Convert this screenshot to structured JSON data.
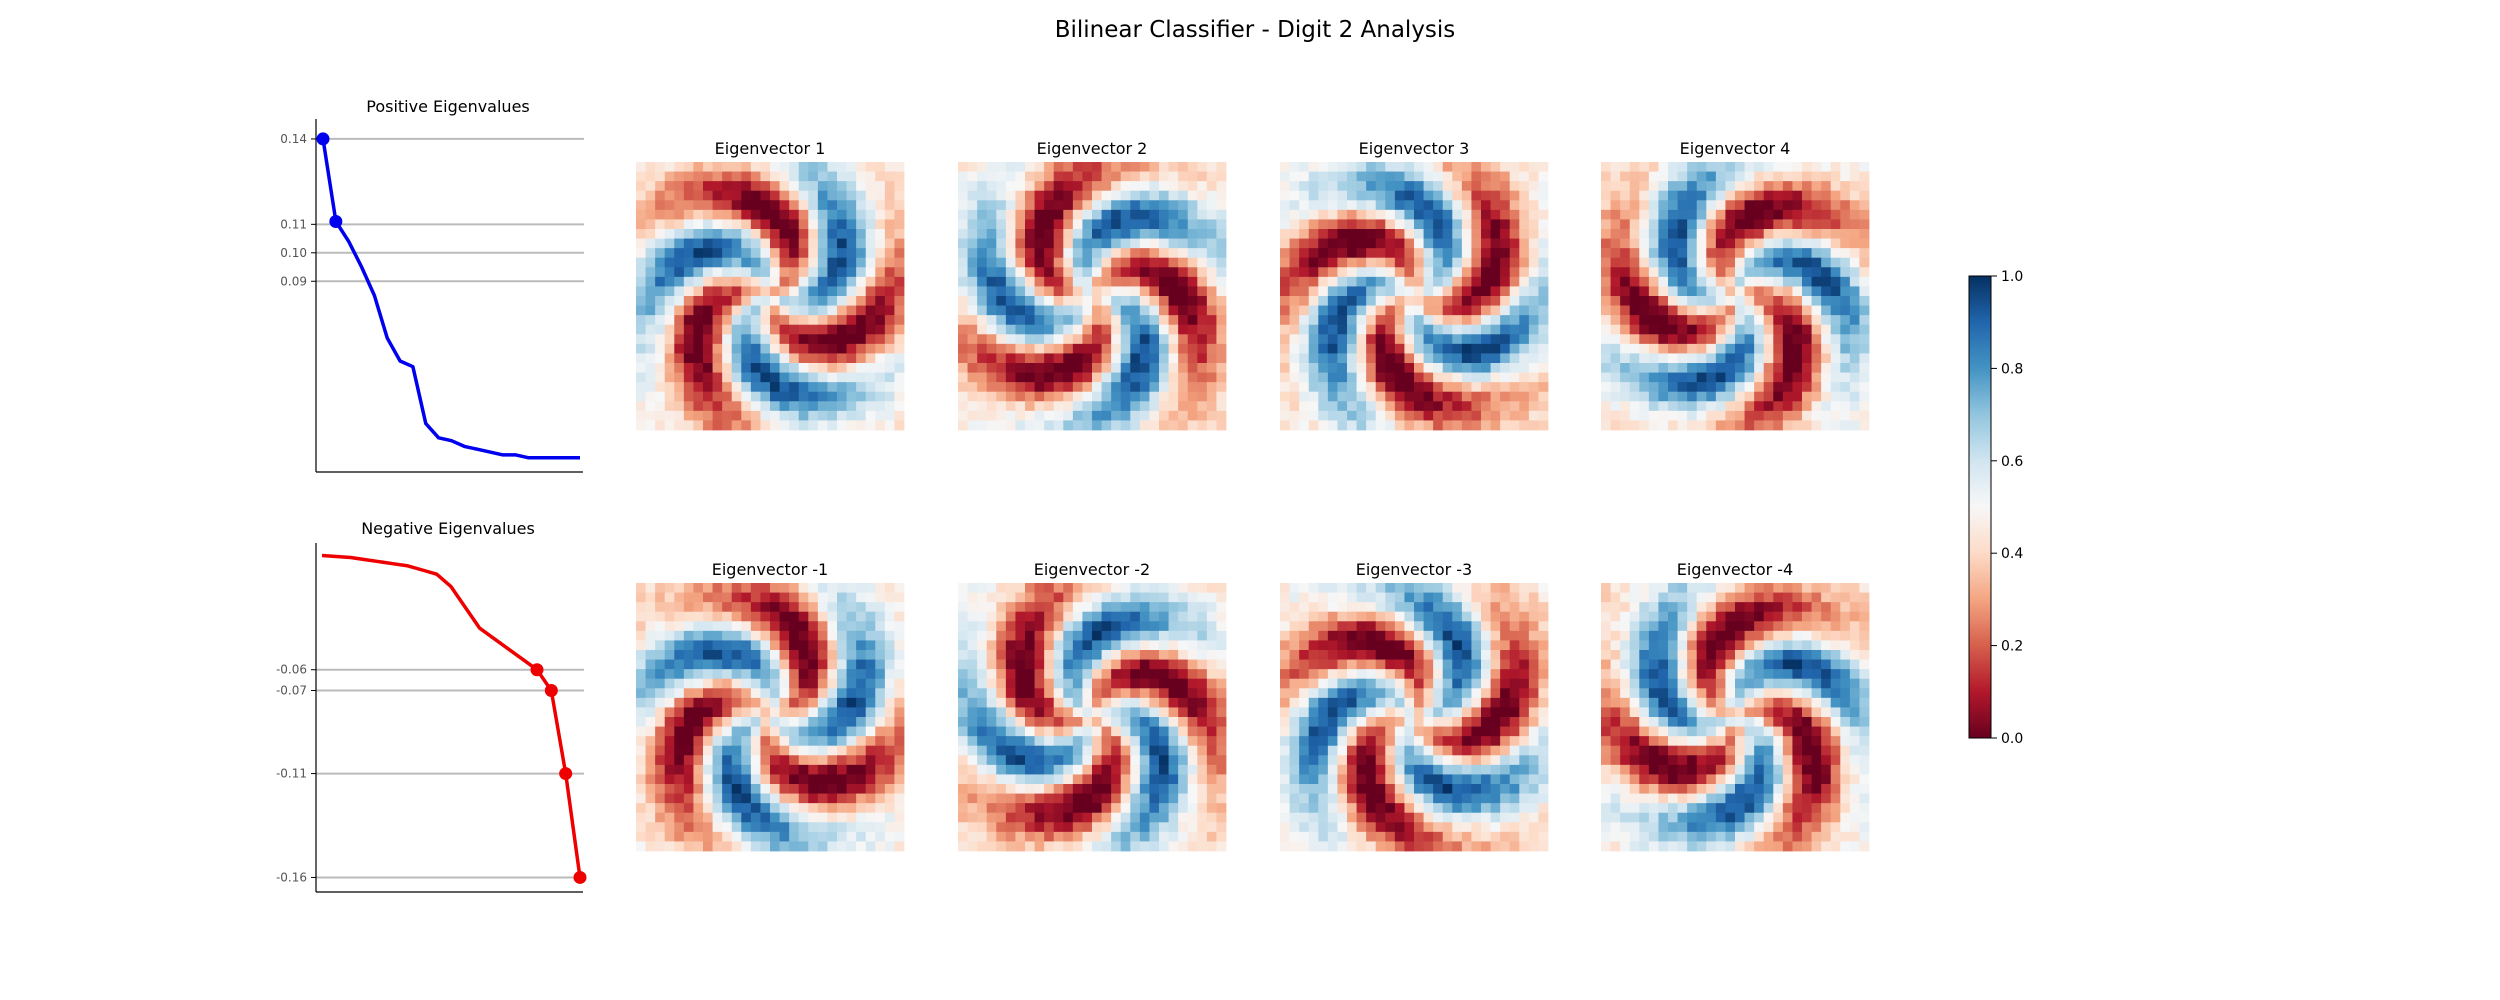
{
  "title": "Bilinear Classifier - Digit 2 Analysis",
  "chart_data": [
    {
      "type": "line",
      "title": "Positive Eigenvalues",
      "color": "#0000ee",
      "ytick_labels": [
        "0.14",
        "0.11",
        "0.10",
        "0.09"
      ],
      "highlight_y": [
        0.14,
        0.11,
        0.1,
        0.09
      ],
      "values": [
        0.14,
        0.111,
        0.104,
        0.095,
        0.085,
        0.07,
        0.062,
        0.06,
        0.04,
        0.035,
        0.034,
        0.032,
        0.031,
        0.03,
        0.029,
        0.029,
        0.028,
        0.028,
        0.028,
        0.028,
        0.028
      ],
      "ylim": [
        0.023,
        0.147
      ],
      "grid": false
    },
    {
      "type": "line",
      "title": "Negative Eigenvalues",
      "color": "#ee0000",
      "ytick_labels": [
        "-0.06",
        "-0.07",
        "-0.11",
        "-0.16"
      ],
      "highlight_y": [
        -0.06,
        -0.07,
        -0.11,
        -0.16
      ],
      "values": [
        -0.005,
        -0.0055,
        -0.006,
        -0.007,
        -0.008,
        -0.009,
        -0.01,
        -0.012,
        -0.014,
        -0.02,
        -0.03,
        -0.04,
        -0.045,
        -0.05,
        -0.055,
        -0.06,
        -0.07,
        -0.11,
        -0.16
      ],
      "ylim": [
        -0.167,
        0.001
      ],
      "grid": false
    },
    {
      "type": "heatmap",
      "panels": [
        {
          "title": "Eigenvector 1"
        },
        {
          "title": "Eigenvector 2"
        },
        {
          "title": "Eigenvector 3"
        },
        {
          "title": "Eigenvector 4"
        },
        {
          "title": "Eigenvector -1"
        },
        {
          "title": "Eigenvector -2"
        },
        {
          "title": "Eigenvector -3"
        },
        {
          "title": "Eigenvector -4"
        }
      ],
      "grid_size": 28,
      "colormap": "RdBu",
      "colorbar": {
        "range": [
          0.0,
          1.0
        ],
        "tick_labels": [
          "1.0",
          "0.8",
          "0.6",
          "0.4",
          "0.2",
          "0.0"
        ],
        "colors": [
          "#67001f",
          "#b2182b",
          "#d6604d",
          "#f4a582",
          "#fddbc7",
          "#f7f7f7",
          "#d1e5f0",
          "#92c5de",
          "#4393c3",
          "#2166ac",
          "#053061"
        ]
      }
    }
  ]
}
